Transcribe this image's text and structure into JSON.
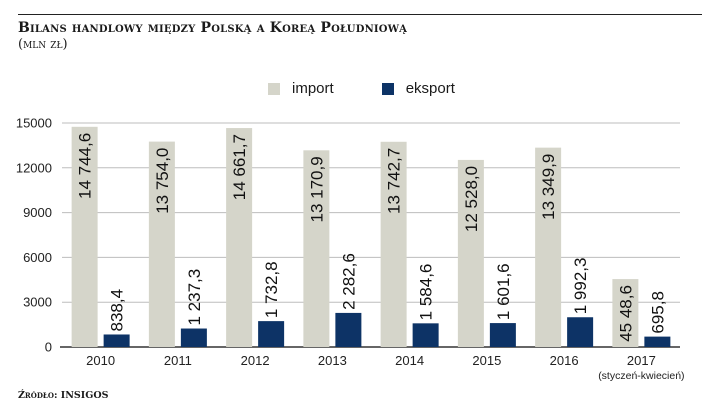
{
  "header": {
    "title": "Bilans handlowy między Polską a Koreą Południową",
    "subtitle": "(mln zł)"
  },
  "footer": {
    "source": "Źródło: INSIGOS"
  },
  "colors": {
    "import": "#d5d5ca",
    "export": "#0d3366",
    "grid": "#bdbdbd",
    "axis": "#333333"
  },
  "chart_data": {
    "type": "bar",
    "title": "Bilans handlowy między Polską a Koreą Południową",
    "ylabel": "(mln zł)",
    "xlabel": "",
    "ylim": [
      0,
      15000
    ],
    "yticks": [
      0,
      3000,
      6000,
      9000,
      12000,
      15000
    ],
    "ytick_labels": [
      "0",
      "3000",
      "6000",
      "9000",
      "12000",
      "15000"
    ],
    "grid": true,
    "legend": "top-center",
    "categories": [
      "2010",
      "2011",
      "2012",
      "2013",
      "2014",
      "2015",
      "2016",
      "2017"
    ],
    "category_notes": [
      "",
      "",
      "",
      "",
      "",
      "",
      "",
      "(styczeń-kwiecień)"
    ],
    "series": [
      {
        "name": "import",
        "values": [
          14744.6,
          13754.0,
          14661.7,
          13170.9,
          13742.7,
          12528.0,
          13349.9,
          4548.6
        ],
        "labels": [
          "14 744,6",
          "13 754,0",
          "14 661,7",
          "13 170,9",
          "13 742,7",
          "12 528,0",
          "13 349,9",
          "45 48,6"
        ]
      },
      {
        "name": "eksport",
        "values": [
          838.4,
          1237.3,
          1732.8,
          2282.6,
          1584.6,
          1601.6,
          1992.3,
          695.8
        ],
        "labels": [
          "838,4",
          "1 237,3",
          "1 732,8",
          "2 282,6",
          "1 584,6",
          "1 601,6",
          "1 992,3",
          "695,8"
        ]
      }
    ]
  }
}
